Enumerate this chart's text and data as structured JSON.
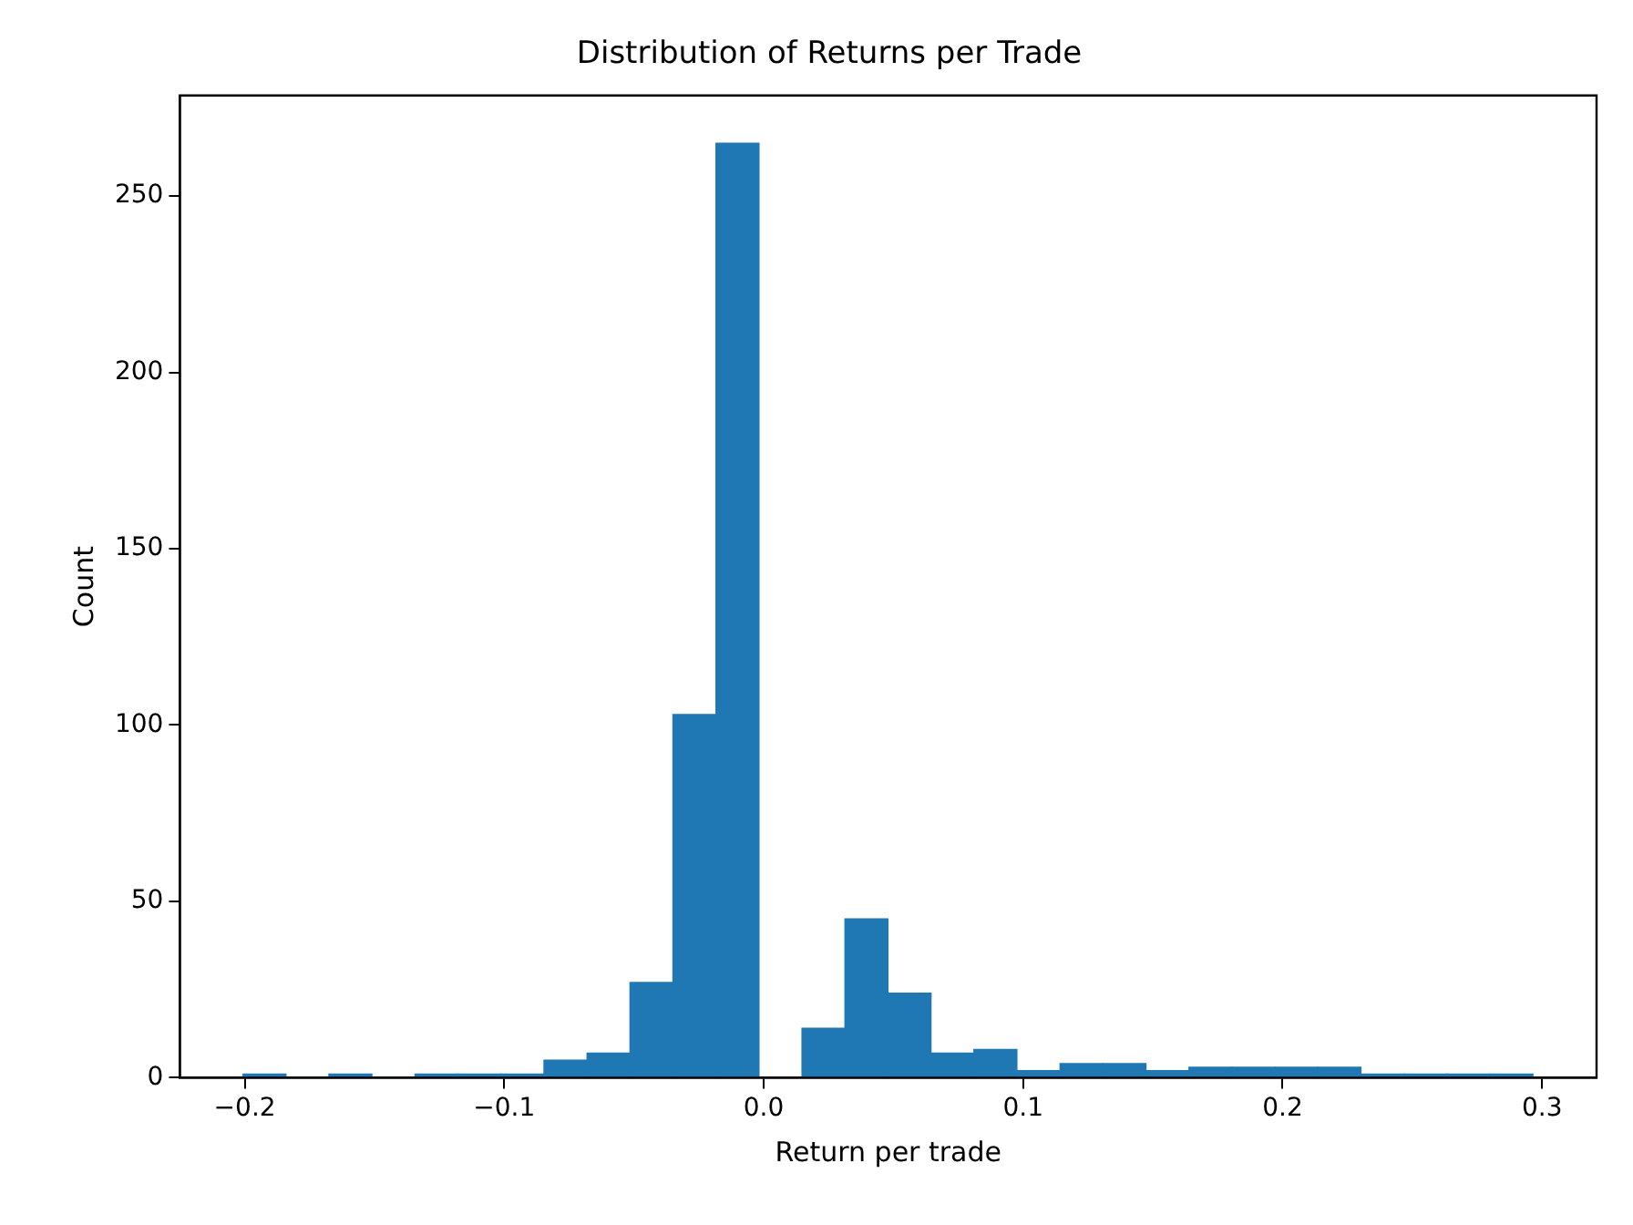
{
  "chart_data": {
    "type": "histogram",
    "title": "Distribution of Returns per Trade",
    "xlabel": "Return per trade",
    "ylabel": "Count",
    "color": "#1f77b4",
    "bins": [
      -0.2007,
      -0.1841,
      -0.1676,
      -0.151,
      -0.1344,
      -0.1178,
      -0.1013,
      -0.0847,
      -0.0681,
      -0.0515,
      -0.035,
      -0.0184,
      -0.0018,
      0.0148,
      0.0313,
      0.0479,
      0.0645,
      0.081,
      0.0976,
      0.1142,
      0.1308,
      0.1473,
      0.1639,
      0.1805,
      0.1971,
      0.2136,
      0.2302,
      0.2468,
      0.2633,
      0.2799,
      0.2965
    ],
    "values": [
      1,
      0,
      1,
      0,
      1,
      1,
      1,
      5,
      7,
      27,
      103,
      265,
      0,
      14,
      45,
      24,
      7,
      8,
      2,
      4,
      4,
      2,
      3,
      3,
      3,
      3,
      1,
      1,
      1,
      1
    ],
    "xlim": [
      -0.225,
      0.321
    ],
    "xticks": [
      {
        "value": -0.2,
        "label": "−0.2"
      },
      {
        "value": -0.1,
        "label": "−0.1"
      },
      {
        "value": 0,
        "label": "0.0"
      },
      {
        "value": 0.1,
        "label": "0.1"
      },
      {
        "value": 0.2,
        "label": "0.2"
      },
      {
        "value": 0.3,
        "label": "0.3"
      }
    ],
    "ylim": [
      0,
      278.5
    ],
    "yticks": [
      0,
      50,
      100,
      150,
      200,
      250
    ],
    "grid": false,
    "legend": false
  }
}
